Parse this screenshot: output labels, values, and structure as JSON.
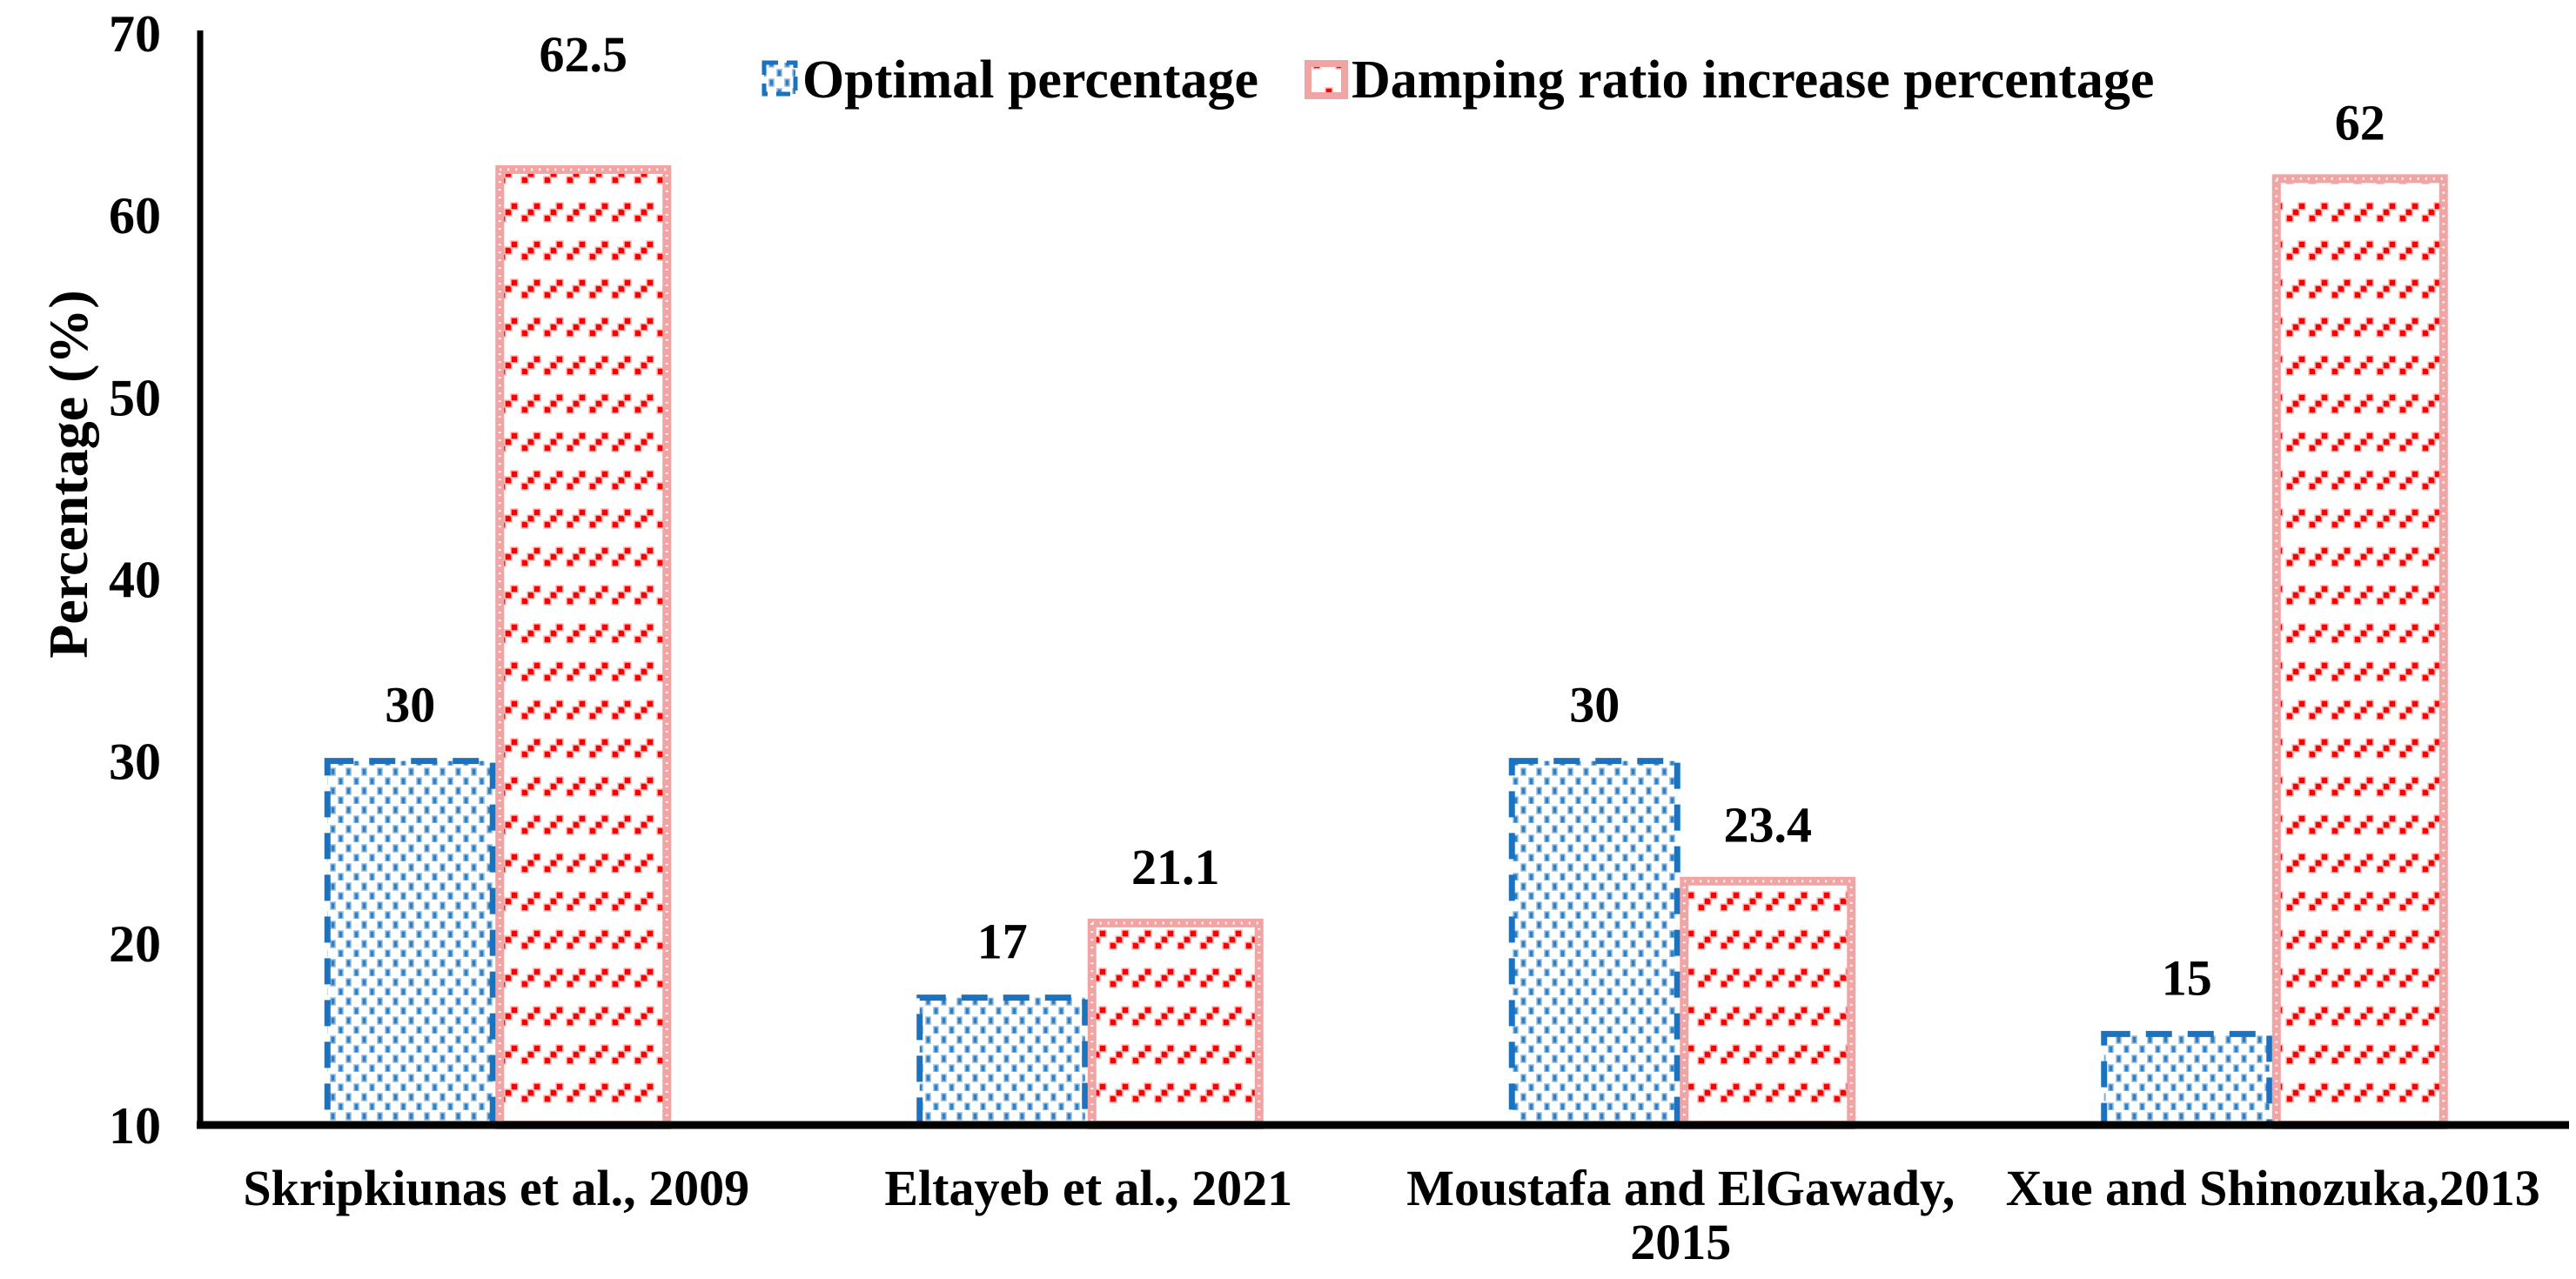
{
  "chart_data": {
    "type": "bar",
    "title": "",
    "ylabel": "Percentage (%)",
    "ylim": [
      10,
      70
    ],
    "yticks": [
      10,
      20,
      30,
      40,
      50,
      60,
      70
    ],
    "grid": false,
    "legend_position": "top-center",
    "categories": [
      [
        "Skripkiunas et al., 2009"
      ],
      [
        "Eltayeb et al., 2021"
      ],
      [
        "Moustafa and ElGawady,",
        "2015"
      ],
      [
        "Xue and Shinozuka,2013"
      ]
    ],
    "series": [
      {
        "name": "Optimal percentage",
        "values": [
          30,
          17,
          30,
          15
        ],
        "labels": [
          "30",
          "17",
          "30",
          "15"
        ],
        "fill_color": "#2E7FC4",
        "border_color": "#1B72BF",
        "pattern": "dotted-squares",
        "border_style": "dashed"
      },
      {
        "name": "Damping ratio increase percentage",
        "values": [
          62.5,
          21.1,
          23.4,
          62
        ],
        "labels": [
          "62.5",
          "21.1",
          "23.4",
          "62"
        ],
        "fill_color": "#FB0000",
        "border_color": "#F0A4A4",
        "pattern": "diagonal-dashes",
        "border_style": "dotted"
      }
    ]
  }
}
